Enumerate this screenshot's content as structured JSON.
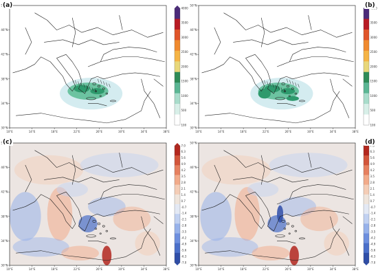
{
  "panels": [
    {
      "id": "a",
      "label": "(a)",
      "type": "precipitation",
      "lat_labels": [
        "50°N",
        "46°N",
        "42°N",
        "38°N",
        "34°N",
        "30°N"
      ],
      "lon_labels": [
        "10°E",
        "14°E",
        "18°E",
        "22°E",
        "26°E",
        "30°E",
        "34°E",
        "38°E"
      ],
      "colorbar_labels": [
        "4000",
        "3500",
        "3000",
        "2500",
        "2000",
        "1500",
        "1000",
        "500",
        "100"
      ]
    },
    {
      "id": "b",
      "label": "(b)",
      "type": "precipitation",
      "lat_labels": [
        "50°N",
        "46°N",
        "42°N",
        "38°N",
        "34°N",
        "30°N"
      ],
      "lon_labels": [
        "10°E",
        "14°E",
        "18°E",
        "22°E",
        "26°E",
        "30°E",
        "34°E",
        "38°E"
      ],
      "colorbar_labels": [
        "4000",
        "3500",
        "3000",
        "2500",
        "2000",
        "1500",
        "1000",
        "500",
        "100"
      ]
    },
    {
      "id": "c",
      "label": "(c)",
      "type": "anomaly",
      "lat_labels": [
        "50°N",
        "46°N",
        "42°N",
        "38°N",
        "34°N",
        "30°N"
      ],
      "lon_labels": [
        "10°E",
        "14°E",
        "18°E",
        "22°E",
        "26°E",
        "30°E",
        "34°E",
        "38°E"
      ],
      "colorbar_labels": [
        "7.0",
        "6.3",
        "5.6",
        "4.9",
        "4.2",
        "3.5",
        "2.8",
        "2.1",
        "1.4",
        "0.7",
        "-0.7",
        "-1.4",
        "-2.1",
        "-2.8",
        "-3.5",
        "-4.2",
        "-4.9",
        "-5.6",
        "-6.3",
        "-7.0"
      ]
    },
    {
      "id": "d",
      "label": "(d)",
      "type": "anomaly",
      "lat_labels": [
        "50°N",
        "46°N",
        "42°N",
        "38°N",
        "34°N",
        "30°N"
      ],
      "lon_labels": [
        "10°E",
        "14°E",
        "18°E",
        "22°E",
        "26°E",
        "30°E",
        "34°E",
        "38°E"
      ],
      "colorbar_labels": [
        "7.0",
        "6.3",
        "5.6",
        "4.9",
        "4.2",
        "3.5",
        "2.8",
        "2.1",
        "1.4",
        "0.7",
        "-0.7",
        "-1.4",
        "-2.1",
        "-2.8",
        "-3.5",
        "-4.2",
        "-4.9",
        "-5.6",
        "-6.3",
        "-7.0"
      ]
    }
  ],
  "colors": {
    "precip_scale": [
      "#ffffff",
      "#d8efe8",
      "#a9dccb",
      "#5bb694",
      "#2e8b57",
      "#e8d77a",
      "#f5b445",
      "#f08a2e",
      "#e0552a",
      "#b81b24",
      "#4b2a7a"
    ],
    "anomaly_scale": [
      "#2f4ea8",
      "#4a6fc9",
      "#6d8fde",
      "#97b2ea",
      "#c1d1f1",
      "#e3e9f4",
      "#efe5dc",
      "#f4cdb6",
      "#f2ab8a",
      "#e6805f",
      "#d2553b",
      "#b3271e"
    ],
    "coastline": "#222222",
    "precip_light": "#d4ecf0",
    "precip_mid": "#6cc3a1",
    "precip_dark": "#2e9a6d"
  }
}
